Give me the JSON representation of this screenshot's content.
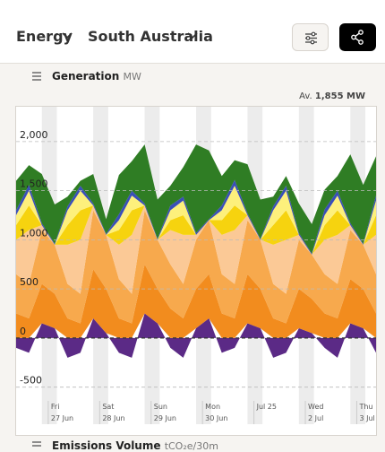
{
  "header": {
    "metric": "Energy",
    "region": "South Australia"
  },
  "section": {
    "title": "Generation",
    "unit": "MW"
  },
  "next_section": {
    "title": "Emissions Volume",
    "unit": "tCO₂e/30m"
  },
  "chart_data": {
    "type": "stacked-area",
    "average_label": "Av.",
    "average_value": "1,855 MW",
    "x": [
      0,
      6,
      12,
      18,
      24,
      30,
      36,
      42,
      48,
      54,
      60,
      66,
      72,
      78,
      84,
      90,
      96,
      102,
      108,
      114,
      120,
      126,
      132,
      138,
      144,
      150,
      156,
      162,
      168
    ],
    "xlim": [
      0,
      168
    ],
    "xticks": [
      {
        "value": 15,
        "label": "Fri",
        "sublabel": "27 Jun"
      },
      {
        "value": 39,
        "label": "Sat",
        "sublabel": "28 Jun"
      },
      {
        "value": 63,
        "label": "Sun",
        "sublabel": "29 Jun"
      },
      {
        "value": 87,
        "label": "Mon",
        "sublabel": "30 Jun"
      },
      {
        "value": 111,
        "label": "Jul 25"
      },
      {
        "value": 135,
        "label": "Wed",
        "sublabel": "2 Jul"
      },
      {
        "value": 159,
        "label": "Thu",
        "sublabel": "3 Jul"
      }
    ],
    "ylim": [
      -640,
      2355
    ],
    "yticks": [
      -500,
      0,
      500,
      {
        "value": 1000,
        "label": "1,000"
      },
      {
        "value": 1500,
        "label": "1,500"
      },
      {
        "value": 2000,
        "label": "2,000"
      }
    ],
    "grid": true,
    "series": [
      {
        "color": "#5b2a86",
        "values": [
          -100,
          -150,
          150,
          100,
          -200,
          -150,
          200,
          50,
          -150,
          -200,
          250,
          150,
          -100,
          -200,
          100,
          200,
          -150,
          -100,
          150,
          100,
          -200,
          -150,
          100,
          50,
          -100,
          -200,
          150,
          100,
          -150
        ]
      },
      {
        "color": "#f28c1e",
        "values": [
          250,
          200,
          400,
          350,
          200,
          150,
          500,
          450,
          200,
          150,
          500,
          350,
          300,
          200,
          400,
          450,
          250,
          200,
          500,
          400,
          200,
          150,
          400,
          350,
          250,
          200,
          450,
          400,
          250
        ]
      },
      {
        "color": "#f7a94d",
        "values": [
          400,
          350,
          550,
          500,
          350,
          300,
          600,
          550,
          400,
          300,
          550,
          500,
          450,
          350,
          500,
          550,
          400,
          350,
          550,
          500,
          350,
          300,
          500,
          450,
          400,
          350,
          500,
          450,
          400
        ]
      },
      {
        "color": "#fbc996",
        "values": [
          350,
          550,
          50,
          0,
          400,
          550,
          50,
          0,
          350,
          600,
          50,
          0,
          350,
          500,
          50,
          0,
          400,
          550,
          50,
          0,
          400,
          550,
          50,
          0,
          350,
          500,
          50,
          0,
          400
        ]
      },
      {
        "color": "#f6d30f",
        "values": [
          150,
          250,
          0,
          0,
          200,
          300,
          0,
          0,
          150,
          250,
          0,
          0,
          100,
          200,
          0,
          0,
          150,
          250,
          0,
          0,
          200,
          300,
          0,
          0,
          150,
          250,
          0,
          0,
          200
        ]
      },
      {
        "color": "#fdf07c",
        "values": [
          100,
          150,
          0,
          0,
          150,
          200,
          0,
          0,
          100,
          150,
          0,
          0,
          100,
          150,
          0,
          0,
          100,
          200,
          0,
          0,
          150,
          200,
          0,
          0,
          100,
          150,
          0,
          0,
          150
        ]
      },
      {
        "color": "#3a4fb8",
        "values": [
          50,
          60,
          20,
          10,
          40,
          50,
          20,
          10,
          60,
          50,
          20,
          10,
          50,
          40,
          20,
          10,
          50,
          60,
          20,
          10,
          40,
          50,
          20,
          10,
          60,
          50,
          20,
          10,
          50
        ]
      },
      {
        "color": "#2f7d24",
        "values": [
          300,
          200,
          500,
          400,
          100,
          50,
          300,
          150,
          400,
          300,
          600,
          400,
          200,
          300,
          900,
          700,
          300,
          200,
          500,
          400,
          100,
          100,
          300,
          300,
          200,
          150,
          700,
          600,
          400
        ]
      }
    ]
  }
}
